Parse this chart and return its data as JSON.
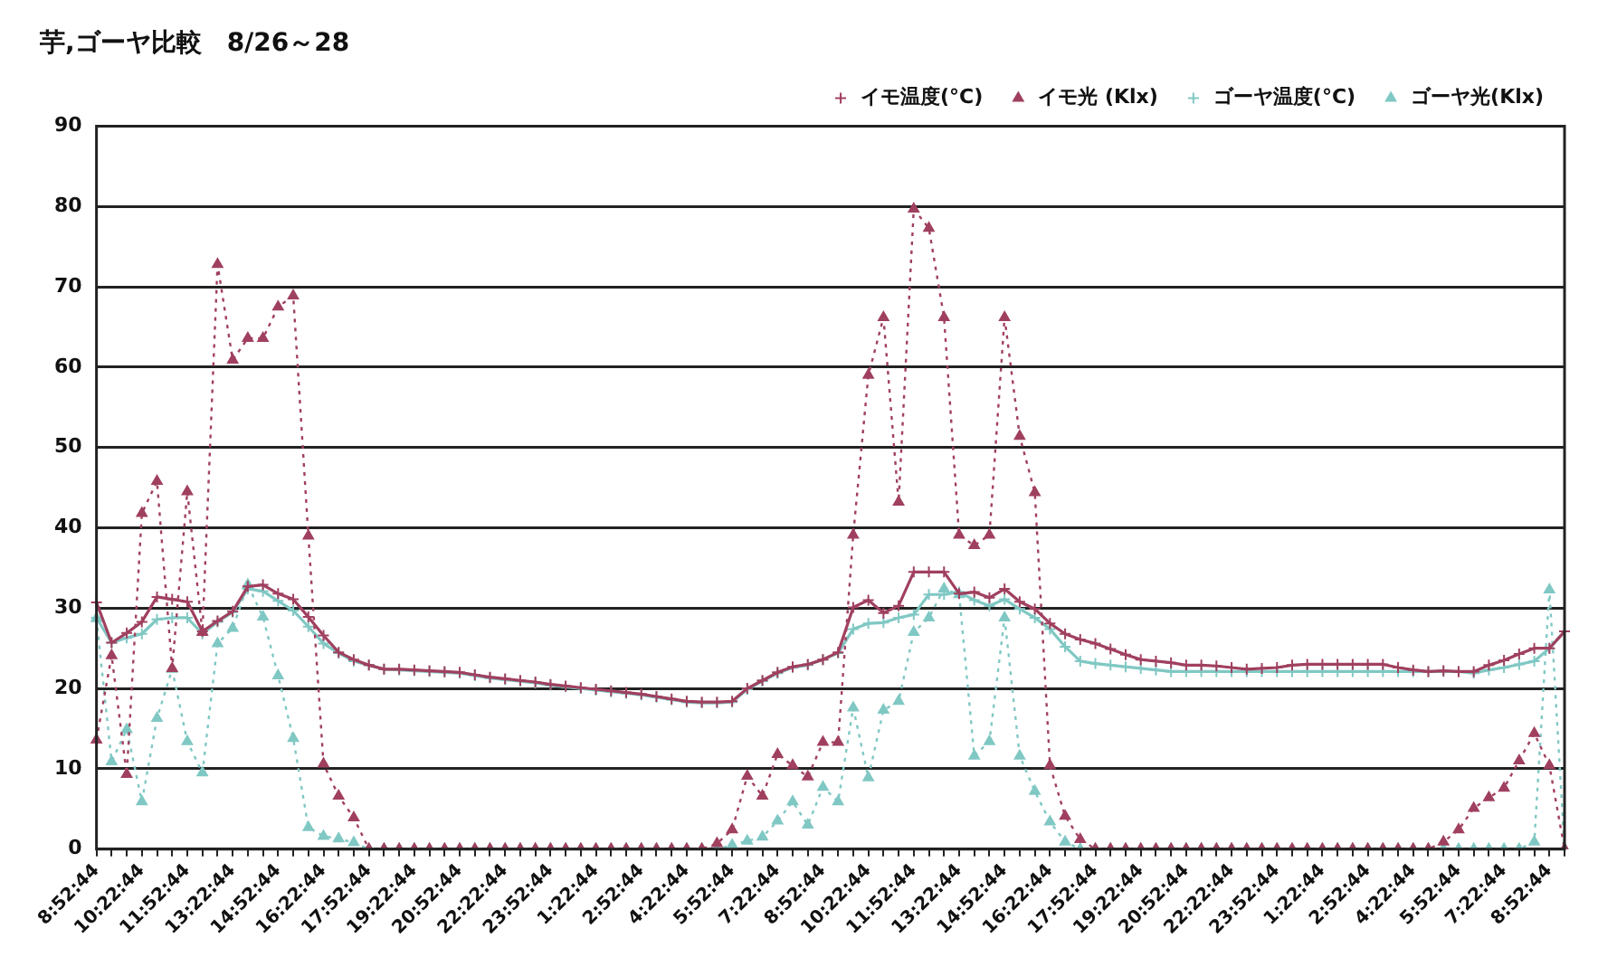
{
  "chart_data": {
    "type": "line",
    "title": "芋,ゴーヤ比較　8/26～28",
    "categories": [
      "8:52:44",
      null,
      null,
      "10:22:44",
      null,
      null,
      "11:52:44",
      null,
      null,
      "13:22:44",
      null,
      null,
      "14:52:44",
      null,
      null,
      "16:22:44",
      null,
      null,
      "17:52:44",
      null,
      null,
      "19:22:44",
      null,
      null,
      "20:52:44",
      null,
      null,
      "22:22:44",
      null,
      null,
      "23:52:44",
      null,
      null,
      "1:22:44",
      null,
      null,
      "2:52:44",
      null,
      null,
      "4:22:44",
      null,
      null,
      "5:52:44",
      null,
      null,
      "7:22:44",
      null,
      null,
      "8:52:44",
      null,
      null,
      "10:22:44",
      null,
      null,
      "11:52:44",
      null,
      null,
      "13:22:44",
      null,
      null,
      "14:52:44",
      null,
      null,
      "16:22:44",
      null,
      null,
      "17:52:44",
      null,
      null,
      "19:22:44",
      null,
      null,
      "20:52:44",
      null,
      null,
      "22:22:44",
      null,
      null,
      "23:52:44",
      null,
      null,
      "1:22:44",
      null,
      null,
      "2:52:44",
      null,
      null,
      "4:22:44",
      null,
      null,
      "5:52:44",
      null,
      null,
      "7:22:44",
      null,
      null,
      "8:52:44",
      null
    ],
    "series": [
      {
        "name": "イモ温度(°C)",
        "color": "#a0405f",
        "marker": "cross",
        "line_style": "solid",
        "values": [
          30.7,
          25.7,
          26.9,
          28.3,
          31.4,
          31.1,
          30.8,
          27.1,
          28.4,
          29.6,
          32.7,
          32.9,
          31.8,
          31.1,
          28.9,
          26.6,
          24.5,
          23.6,
          22.9,
          22.4,
          22.4,
          22.3,
          22.2,
          22.1,
          22.0,
          21.7,
          21.4,
          21.2,
          21.0,
          20.8,
          20.5,
          20.3,
          20.1,
          19.9,
          19.7,
          19.5,
          19.3,
          19.0,
          18.7,
          18.4,
          18.3,
          18.3,
          18.4,
          20.0,
          21.0,
          22.0,
          22.7,
          23.0,
          23.6,
          24.5,
          30.1,
          31.0,
          29.4,
          30.3,
          34.5,
          34.5,
          34.5,
          31.8,
          32.0,
          31.3,
          32.4,
          30.8,
          29.9,
          28.1,
          26.8,
          26.1,
          25.6,
          24.9,
          24.2,
          23.6,
          23.4,
          23.2,
          22.9,
          22.9,
          22.8,
          22.6,
          22.4,
          22.5,
          22.6,
          22.9,
          23.0,
          23.0,
          23.0,
          23.0,
          23.0,
          23.0,
          22.6,
          22.3,
          22.1,
          22.2,
          22.1,
          22.1,
          22.9,
          23.5,
          24.3,
          25.0,
          25.0,
          27.1
        ]
      },
      {
        "name": "イモ光 (Klx)",
        "color": "#a0405f",
        "marker": "triangle",
        "line_style": "dotted",
        "values": [
          13.6,
          24.1,
          9.3,
          41.8,
          45.8,
          22.5,
          44.5,
          27.0,
          72.8,
          60.9,
          63.6,
          63.6,
          67.5,
          68.9,
          39.0,
          10.6,
          6.6,
          3.9,
          0,
          0,
          0,
          0,
          0,
          0,
          0,
          0,
          0,
          0,
          0,
          0,
          0,
          0,
          0,
          0,
          0,
          0,
          0,
          0,
          0,
          0,
          0,
          0.7,
          2.4,
          9.1,
          6.6,
          11.8,
          10.4,
          9.0,
          13.3,
          13.3,
          39.1,
          59.0,
          66.2,
          43.2,
          79.7,
          77.3,
          66.2,
          39.1,
          37.8,
          39.1,
          66.2,
          51.4,
          44.4,
          10.4,
          4.1,
          1.2,
          0,
          0,
          0,
          0,
          0,
          0,
          0,
          0,
          0,
          0,
          0,
          0,
          0,
          0,
          0,
          0,
          0,
          0,
          0,
          0,
          0,
          0,
          0,
          0.9,
          2.4,
          5.1,
          6.4,
          7.6,
          11.0,
          14.4,
          10.4,
          0
        ]
      },
      {
        "name": "ゴーヤ温度(°C)",
        "color": "#80c8c4",
        "marker": "cross",
        "line_style": "solid",
        "values": [
          28.8,
          25.7,
          26.3,
          26.8,
          28.6,
          28.8,
          28.8,
          26.8,
          28.3,
          29.5,
          32.4,
          32.1,
          30.9,
          29.7,
          27.7,
          25.6,
          24.4,
          23.4,
          22.9,
          22.4,
          22.3,
          22.2,
          22.1,
          22.0,
          21.9,
          21.6,
          21.3,
          21.1,
          20.9,
          20.7,
          20.4,
          20.2,
          20.0,
          19.8,
          19.6,
          19.4,
          19.2,
          18.9,
          18.6,
          18.3,
          18.2,
          18.2,
          18.3,
          19.9,
          20.9,
          21.9,
          22.6,
          22.9,
          23.6,
          24.4,
          27.4,
          28.1,
          28.2,
          28.8,
          29.2,
          31.7,
          31.7,
          32.0,
          31.0,
          30.3,
          31.1,
          29.9,
          28.8,
          27.4,
          25.2,
          23.4,
          23.1,
          22.9,
          22.7,
          22.5,
          22.3,
          22.1,
          22.1,
          22.1,
          22.1,
          22.1,
          22.1,
          22.1,
          22.1,
          22.1,
          22.1,
          22.1,
          22.1,
          22.1,
          22.1,
          22.1,
          22.1,
          22.1,
          22.1,
          22.1,
          22.1,
          21.9,
          22.3,
          22.6,
          23.0,
          23.4,
          25.0,
          27.1
        ]
      },
      {
        "name": "ゴーヤ光(Klx)",
        "color": "#80c8c4",
        "marker": "triangle",
        "line_style": "dotted",
        "values": [
          28.7,
          10.9,
          14.9,
          5.9,
          16.3,
          22.4,
          13.4,
          9.5,
          25.6,
          27.5,
          32.9,
          28.9,
          21.6,
          13.8,
          2.7,
          1.6,
          1.3,
          0.8,
          0,
          0,
          0,
          0,
          0,
          0,
          0,
          0,
          0,
          0,
          0,
          0,
          0,
          0,
          0,
          0,
          0,
          0,
          0,
          0,
          0,
          0,
          0,
          0,
          0.5,
          1.0,
          1.5,
          3.5,
          5.9,
          3.0,
          7.7,
          5.9,
          17.6,
          8.9,
          17.3,
          18.4,
          27.0,
          28.8,
          32.4,
          31.7,
          11.6,
          13.4,
          28.8,
          11.6,
          7.2,
          3.4,
          0.9,
          0,
          0,
          0,
          0,
          0,
          0,
          0,
          0,
          0,
          0,
          0,
          0,
          0,
          0,
          0,
          0,
          0,
          0,
          0,
          0,
          0,
          0,
          0,
          0,
          0,
          0,
          0,
          0,
          0,
          0,
          0.9,
          32.3,
          0
        ]
      }
    ],
    "ylim": [
      0,
      90
    ],
    "yticks": [
      0,
      10,
      20,
      30,
      40,
      50,
      60,
      70,
      80,
      90
    ],
    "grid": "y",
    "legend": "top right"
  }
}
